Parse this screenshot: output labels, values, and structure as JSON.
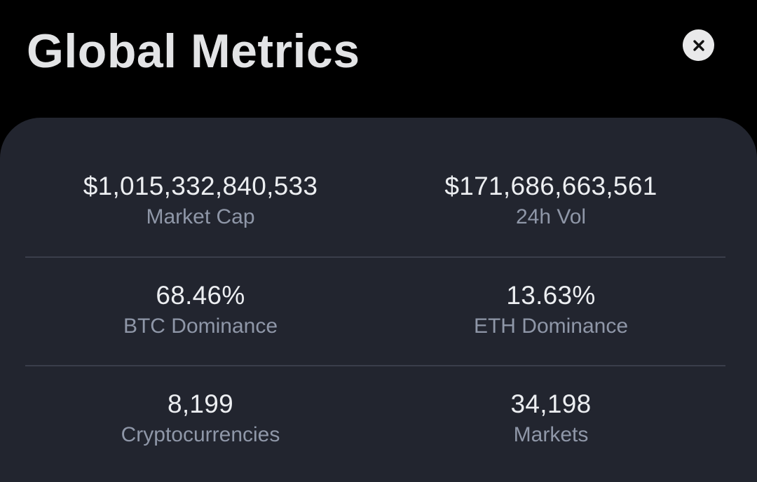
{
  "header": {
    "title": "Global Metrics",
    "close_icon": "close-icon"
  },
  "colors": {
    "background": "#000000",
    "panel": "#22252f",
    "value_text": "#eceef1",
    "label_text": "#8f97a8",
    "divider": "#3a3e4b"
  },
  "metrics": [
    {
      "value": "$1,015,332,840,533",
      "label": "Market Cap"
    },
    {
      "value": "$171,686,663,561",
      "label": "24h Vol"
    },
    {
      "value": "68.46%",
      "label": "BTC Dominance"
    },
    {
      "value": "13.63%",
      "label": "ETH Dominance"
    },
    {
      "value": "8,199",
      "label": "Cryptocurrencies"
    },
    {
      "value": "34,198",
      "label": "Markets"
    }
  ]
}
